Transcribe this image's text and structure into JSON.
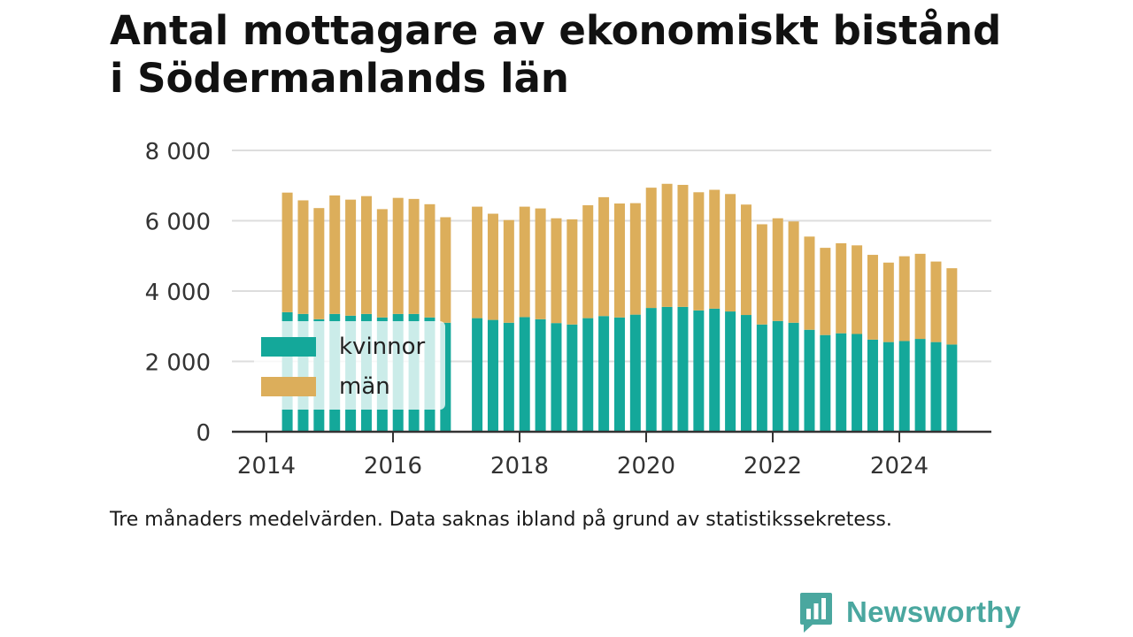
{
  "title_line1": "Antal mottagare av ekonomiskt bistånd",
  "title_line2": "i Södermanlands län",
  "footnote": "Tre månaders medelvärden. Data saknas ibland på grund av statistikssekretess.",
  "brand": {
    "name": "Newsworthy",
    "icon": "newsworthy-logo-icon",
    "color": "#4aa79f"
  },
  "colors": {
    "kvinnor": "#14a89a",
    "man": "#dcae5b",
    "grid": "#dddddd",
    "axis": "#333333",
    "text": "#333333"
  },
  "chart_data": {
    "type": "bar",
    "stacked": true,
    "title": "Antal mottagare av ekonomiskt bistånd i Södermanlands län",
    "xlabel": "",
    "ylabel": "",
    "ylim": [
      0,
      8000
    ],
    "xlim": [
      2014,
      2025.6
    ],
    "yticks": [
      0,
      2000,
      4000,
      6000,
      8000
    ],
    "ytick_labels": [
      "0",
      "2 000",
      "4 000",
      "6 000",
      "8 000"
    ],
    "xticks": [
      2014,
      2016,
      2018,
      2020,
      2022,
      2024
    ],
    "xtick_labels": [
      "2014",
      "2016",
      "2018",
      "2020",
      "2022",
      "2024"
    ],
    "legend_position": "bottom-left",
    "x": [
      2014.33,
      2014.58,
      2014.83,
      2015.08,
      2015.33,
      2015.58,
      2015.83,
      2016.08,
      2016.33,
      2016.58,
      2016.83,
      2017.33,
      2017.58,
      2017.83,
      2018.08,
      2018.33,
      2018.58,
      2018.83,
      2019.08,
      2019.33,
      2019.58,
      2019.83,
      2020.08,
      2020.33,
      2020.58,
      2020.83,
      2021.08,
      2021.33,
      2021.58,
      2021.83,
      2022.08,
      2022.33,
      2022.58,
      2022.83,
      2023.08,
      2023.33,
      2023.58,
      2023.83,
      2024.08,
      2024.33,
      2024.58,
      2024.83
    ],
    "series": [
      {
        "name": "kvinnor",
        "values": [
          3400,
          3350,
          3200,
          3350,
          3300,
          3350,
          3250,
          3350,
          3350,
          3250,
          3100,
          3230,
          3180,
          3100,
          3260,
          3200,
          3090,
          3050,
          3230,
          3290,
          3250,
          3330,
          3520,
          3550,
          3550,
          3450,
          3500,
          3420,
          3320,
          3050,
          3150,
          3100,
          2900,
          2750,
          2800,
          2780,
          2620,
          2550,
          2580,
          2640,
          2550,
          2480
        ]
      },
      {
        "name": "män",
        "values": [
          3400,
          3230,
          3160,
          3370,
          3300,
          3350,
          3080,
          3300,
          3270,
          3220,
          3000,
          3170,
          3020,
          2920,
          3140,
          3150,
          2980,
          2990,
          3210,
          3380,
          3240,
          3170,
          3420,
          3500,
          3470,
          3360,
          3380,
          3340,
          3140,
          2850,
          2920,
          2880,
          2650,
          2480,
          2560,
          2520,
          2410,
          2260,
          2410,
          2420,
          2290,
          2170
        ]
      }
    ]
  }
}
